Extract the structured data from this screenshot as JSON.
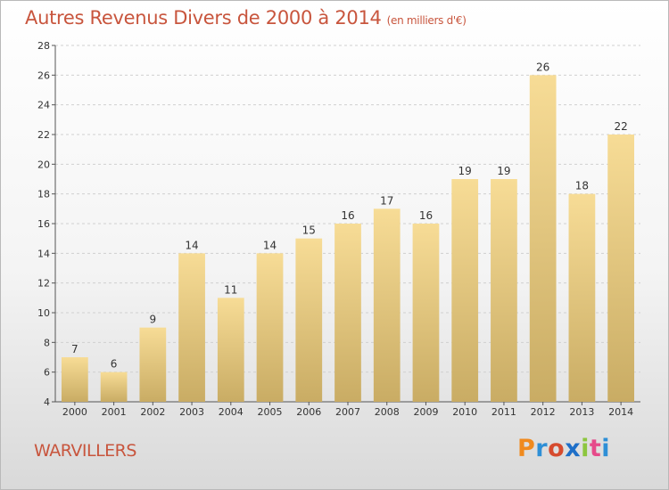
{
  "chart_data": {
    "type": "bar",
    "title": "Autres Revenus Divers de 2000 à 2014",
    "subtitle": "(en milliers d'€)",
    "categories": [
      "2000",
      "2001",
      "2002",
      "2003",
      "2004",
      "2005",
      "2006",
      "2007",
      "2008",
      "2009",
      "2010",
      "2011",
      "2012",
      "2013",
      "2014"
    ],
    "values": [
      7,
      6,
      9,
      14,
      11,
      14,
      15,
      16,
      17,
      16,
      19,
      19,
      26,
      18,
      22
    ],
    "ylim": [
      4,
      28
    ],
    "yticks": [
      4,
      6,
      8,
      10,
      12,
      14,
      16,
      18,
      20,
      22,
      24,
      26,
      28
    ],
    "grid": true,
    "colors": {
      "bar_light": "#f7dc96",
      "bar_dark": "#c9ac64",
      "grid": "#d0d0d0"
    }
  },
  "footer": {
    "commune": "WARVILLERS",
    "logo": "Proxiti",
    "logo_colors": [
      "#f08a1e",
      "#2e8fd6",
      "#d64b2e",
      "#1e6fc8",
      "#8cc63e",
      "#e64a8a",
      "#2e8fd6"
    ]
  }
}
